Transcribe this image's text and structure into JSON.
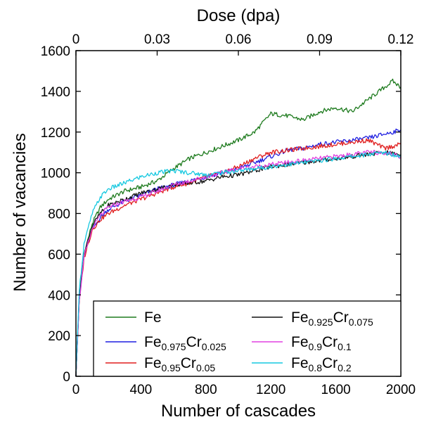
{
  "chart_data": {
    "type": "line",
    "xlabel": "Number of cascades",
    "x2label": "Dose (dpa)",
    "ylabel": "Number of vacancies",
    "xlim": [
      0,
      2000
    ],
    "ylim": [
      0,
      1600
    ],
    "x_ticks": [
      0,
      400,
      800,
      1200,
      1600,
      2000
    ],
    "y_ticks": [
      0,
      200,
      400,
      600,
      800,
      1000,
      1200,
      1400,
      1600
    ],
    "x2_ticks": [
      "0",
      "0.03",
      "0.06",
      "0.09",
      "0.12"
    ],
    "x2_tick_cascades": [
      0,
      500,
      1000,
      1500,
      2000
    ],
    "legend_position": "bottom",
    "series": [
      {
        "name_base": "Fe",
        "name_sub": "",
        "name_base2": "",
        "name_sub2": "",
        "color": "#1e7b1e",
        "x": [
          0,
          20,
          50,
          100,
          150,
          200,
          300,
          400,
          500,
          600,
          700,
          800,
          900,
          1000,
          1100,
          1200,
          1300,
          1400,
          1500,
          1600,
          1700,
          1800,
          1900,
          1950,
          2000
        ],
        "y": [
          0,
          380,
          600,
          750,
          830,
          870,
          910,
          930,
          960,
          1020,
          1070,
          1100,
          1130,
          1160,
          1200,
          1290,
          1280,
          1260,
          1300,
          1320,
          1300,
          1360,
          1420,
          1450,
          1420
        ]
      },
      {
        "name_base": "Fe",
        "name_sub": "0.975",
        "name_base2": "Cr",
        "name_sub2": "0.025",
        "color": "#1f1fe0",
        "x": [
          0,
          20,
          50,
          100,
          150,
          200,
          300,
          400,
          500,
          600,
          700,
          800,
          900,
          1000,
          1100,
          1200,
          1300,
          1400,
          1500,
          1600,
          1700,
          1800,
          1900,
          2000
        ],
        "y": [
          0,
          370,
          590,
          720,
          780,
          820,
          860,
          890,
          920,
          940,
          960,
          980,
          1000,
          1020,
          1050,
          1080,
          1110,
          1120,
          1140,
          1150,
          1160,
          1170,
          1190,
          1210
        ]
      },
      {
        "name_base": "Fe",
        "name_sub": "0.95",
        "name_base2": "Cr",
        "name_sub2": "0.05",
        "color": "#e01f1f",
        "x": [
          0,
          20,
          50,
          100,
          150,
          200,
          300,
          400,
          500,
          600,
          700,
          800,
          900,
          1000,
          1100,
          1200,
          1300,
          1400,
          1500,
          1600,
          1700,
          1800,
          1900,
          2000
        ],
        "y": [
          0,
          360,
          580,
          720,
          770,
          800,
          840,
          870,
          900,
          930,
          950,
          980,
          1000,
          1030,
          1070,
          1100,
          1110,
          1120,
          1130,
          1140,
          1150,
          1160,
          1120,
          1140
        ]
      },
      {
        "name_base": "Fe",
        "name_sub": "0.925",
        "name_base2": "Cr",
        "name_sub2": "0.075",
        "color": "#111111",
        "x": [
          0,
          20,
          50,
          100,
          150,
          200,
          300,
          400,
          500,
          600,
          700,
          800,
          900,
          1000,
          1100,
          1200,
          1300,
          1400,
          1500,
          1600,
          1700,
          1800,
          1900,
          2000
        ],
        "y": [
          0,
          380,
          600,
          740,
          800,
          840,
          870,
          900,
          920,
          940,
          950,
          960,
          980,
          990,
          1010,
          1030,
          1040,
          1050,
          1060,
          1070,
          1080,
          1090,
          1100,
          1090
        ]
      },
      {
        "name_base": "Fe",
        "name_sub": "0.9",
        "name_base2": "Cr",
        "name_sub2": "0.1",
        "color": "#e040e0",
        "x": [
          0,
          20,
          50,
          100,
          150,
          200,
          300,
          400,
          500,
          600,
          700,
          800,
          900,
          1000,
          1100,
          1200,
          1300,
          1400,
          1500,
          1600,
          1700,
          1800,
          1900,
          2000
        ],
        "y": [
          0,
          365,
          585,
          725,
          790,
          830,
          860,
          880,
          910,
          940,
          960,
          980,
          1000,
          1020,
          1030,
          1040,
          1050,
          1060,
          1070,
          1080,
          1090,
          1100,
          1100,
          1080
        ]
      },
      {
        "name_base": "Fe",
        "name_sub": "0.8",
        "name_base2": "Cr",
        "name_sub2": "0.2",
        "color": "#15c8e0",
        "x": [
          0,
          20,
          50,
          100,
          150,
          200,
          300,
          400,
          500,
          600,
          700,
          800,
          900,
          1000,
          1100,
          1200,
          1300,
          1400,
          1500,
          1600,
          1700,
          1800,
          1900,
          2000
        ],
        "y": [
          0,
          420,
          650,
          800,
          880,
          920,
          950,
          980,
          1000,
          1010,
          1000,
          990,
          1000,
          1010,
          1020,
          1030,
          1040,
          1050,
          1060,
          1070,
          1080,
          1090,
          1100,
          1080
        ]
      }
    ]
  }
}
